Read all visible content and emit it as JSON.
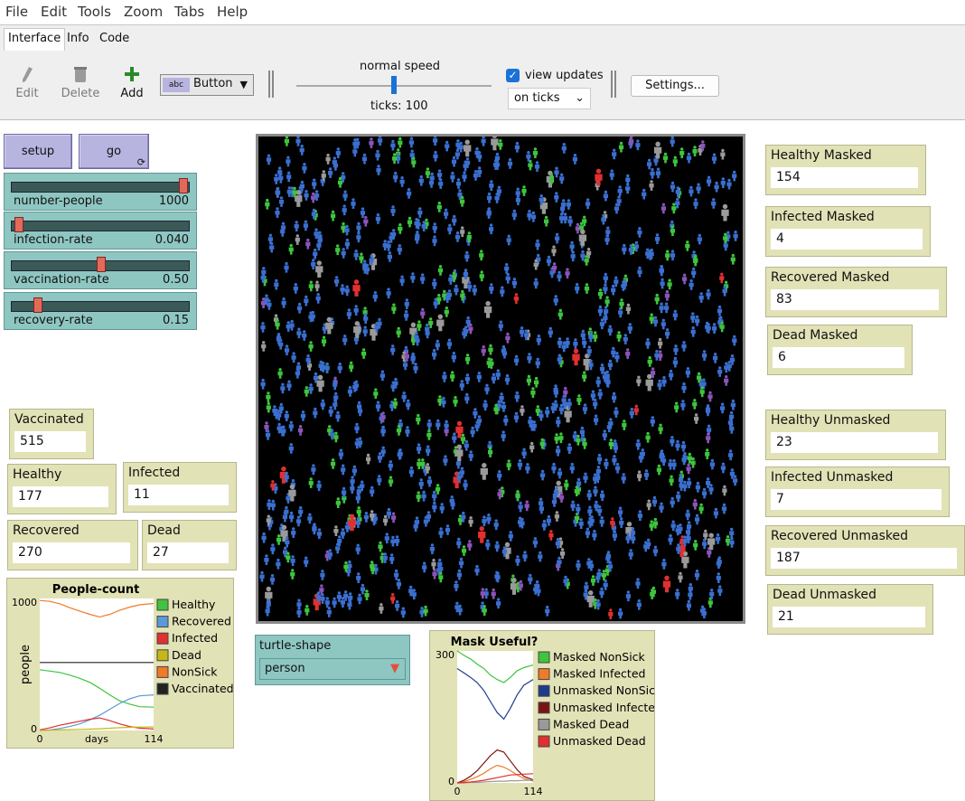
{
  "menu": [
    "File",
    "Edit",
    "Tools",
    "Zoom",
    "Tabs",
    "Help"
  ],
  "tabs": [
    "Interface",
    "Info",
    "Code"
  ],
  "toolbar": {
    "edit_label": "Edit",
    "delete_label": "Delete",
    "add_label": "Add",
    "widget_type": "Button",
    "speed_label": "normal speed",
    "speed_fraction": 0.5,
    "ticks_label": "ticks: 100",
    "view_updates_label": "view updates",
    "update_mode": "on ticks",
    "settings_label": "Settings..."
  },
  "buttons": {
    "setup": "setup",
    "go": "go"
  },
  "sliders": [
    {
      "label": "number-people",
      "value": "1000",
      "fraction": 0.98
    },
    {
      "label": "infection-rate",
      "value": "0.040",
      "fraction": 0.02
    },
    {
      "label": "vaccination-rate",
      "value": "0.50",
      "fraction": 0.5
    },
    {
      "label": "recovery-rate",
      "value": "0.15",
      "fraction": 0.13
    }
  ],
  "left_monitors": {
    "vaccinated": {
      "label": "Vaccinated",
      "value": "515"
    },
    "healthy": {
      "label": "Healthy",
      "value": "177"
    },
    "infected": {
      "label": "Infected",
      "value": "11"
    },
    "recovered": {
      "label": "Recovered",
      "value": "270"
    },
    "dead": {
      "label": "Dead",
      "value": "27"
    }
  },
  "right_monitors": [
    {
      "label": "Healthy Masked",
      "value": "154"
    },
    {
      "label": "Infected Masked",
      "value": "4"
    },
    {
      "label": "Recovered Masked",
      "value": "83"
    },
    {
      "label": "Dead Masked",
      "value": "6"
    },
    {
      "label": "Healthy Unmasked",
      "value": "23"
    },
    {
      "label": "Infected Unmasked",
      "value": "7"
    },
    {
      "label": "Recovered Unmasked",
      "value": "187"
    },
    {
      "label": "Dead Unmasked",
      "value": "21"
    }
  ],
  "chooser": {
    "label": "turtle-shape",
    "value": "person"
  },
  "colors": {
    "green": "#3ec43e",
    "blue": "#3a6fd0",
    "red": "#e03030",
    "grey": "#9a9a9a",
    "purple": "#8a54b8",
    "orange": "#f07a28",
    "olive": "#c4b818",
    "dark": "#222222",
    "navy": "#1e3c8c",
    "maroon": "#7a1414"
  },
  "chart_data": [
    {
      "type": "line",
      "title": "People-count",
      "xlabel": "days",
      "ylabel": "people",
      "xlim": [
        0,
        114
      ],
      "ylim": [
        0,
        1000
      ],
      "x_ticks": [
        "0",
        "114"
      ],
      "y_ticks": [
        "0",
        "1000"
      ],
      "x": [
        0,
        10,
        20,
        30,
        40,
        50,
        60,
        70,
        80,
        90,
        100,
        114
      ],
      "series": [
        {
          "name": "Healthy",
          "color": "#3ec43e",
          "values": [
            460,
            450,
            440,
            420,
            395,
            365,
            320,
            270,
            225,
            200,
            180,
            177
          ]
        },
        {
          "name": "Recovered",
          "color": "#5a9ad8",
          "values": [
            0,
            5,
            15,
            30,
            50,
            80,
            115,
            160,
            205,
            240,
            262,
            270
          ]
        },
        {
          "name": "Infected",
          "color": "#e03030",
          "values": [
            5,
            20,
            40,
            55,
            70,
            85,
            95,
            75,
            50,
            30,
            18,
            11
          ]
        },
        {
          "name": "Dead",
          "color": "#c4b818",
          "values": [
            0,
            2,
            4,
            6,
            8,
            10,
            13,
            17,
            21,
            24,
            26,
            27
          ]
        },
        {
          "name": "NonSick",
          "color": "#f07a28",
          "values": [
            985,
            978,
            960,
            930,
            905,
            880,
            860,
            880,
            910,
            935,
            952,
            962
          ]
        },
        {
          "name": "Vaccinated",
          "color": "#222222",
          "values": [
            515,
            515,
            515,
            515,
            515,
            515,
            515,
            515,
            515,
            515,
            515,
            515
          ]
        }
      ]
    },
    {
      "type": "line",
      "title": "Mask Useful?",
      "xlabel": "",
      "ylabel": "",
      "xlim": [
        0,
        114
      ],
      "ylim": [
        0,
        300
      ],
      "x_ticks": [
        "0",
        "114"
      ],
      "y_ticks": [
        "0",
        "300"
      ],
      "x": [
        0,
        10,
        20,
        30,
        40,
        50,
        60,
        70,
        80,
        90,
        100,
        114
      ],
      "series": [
        {
          "name": "Masked NonSick",
          "color": "#3ec43e",
          "values": [
            300,
            290,
            282,
            270,
            260,
            245,
            235,
            228,
            240,
            255,
            262,
            268
          ]
        },
        {
          "name": "Masked Infected",
          "color": "#f07a28",
          "values": [
            0,
            3,
            8,
            14,
            22,
            32,
            40,
            36,
            28,
            18,
            10,
            4
          ]
        },
        {
          "name": "Unmasked NonSick",
          "color": "#1e3c8c",
          "values": [
            260,
            250,
            240,
            228,
            210,
            185,
            160,
            145,
            170,
            200,
            222,
            235
          ]
        },
        {
          "name": "Unmasked Infected",
          "color": "#7a1414",
          "values": [
            0,
            6,
            15,
            28,
            45,
            62,
            75,
            70,
            50,
            30,
            15,
            7
          ]
        },
        {
          "name": "Masked Dead",
          "color": "#9a9a9a",
          "values": [
            0,
            0,
            1,
            1,
            2,
            3,
            4,
            4,
            5,
            5,
            6,
            6
          ]
        },
        {
          "name": "Unmasked Dead",
          "color": "#e03030",
          "values": [
            0,
            1,
            2,
            4,
            6,
            9,
            12,
            15,
            18,
            19,
            20,
            21
          ]
        }
      ]
    }
  ]
}
